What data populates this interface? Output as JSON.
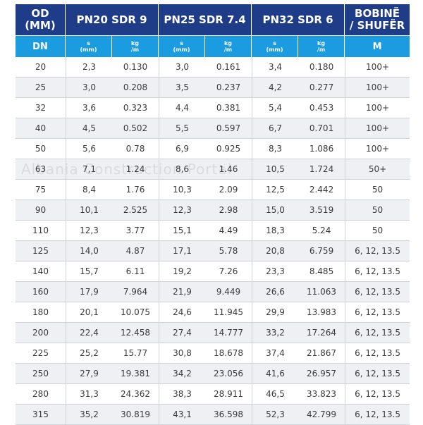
{
  "header": {
    "col1": [
      "OD",
      "(MM)"
    ],
    "group1": "PN20 SDR 9",
    "group2": "PN25 SDR 7.4",
    "group3": "PN32 SDR 6",
    "last": [
      "BOBINË",
      "/ SHUFËR"
    ]
  },
  "subheader": {
    "dn": "DN",
    "s_top": "s",
    "s_unit": "(mm)",
    "kg_top": "kg",
    "kg_unit": "/m",
    "m": "M"
  },
  "watermark": "Albania Construction Portal",
  "rows": [
    {
      "dn": "20",
      "s20": "2,3",
      "kg20": "0.130",
      "s25": "3,0",
      "kg25": "0.161",
      "s32": "3,4",
      "kg32": "0.180",
      "m": "100+"
    },
    {
      "dn": "25",
      "s20": "3,0",
      "kg20": "0.208",
      "s25": "3,5",
      "kg25": "0.237",
      "s32": "4,2",
      "kg32": "0.277",
      "m": "100+"
    },
    {
      "dn": "32",
      "s20": "3,6",
      "kg20": "0.323",
      "s25": "4,4",
      "kg25": "0.381",
      "s32": "5,4",
      "kg32": "0.453",
      "m": "100+"
    },
    {
      "dn": "40",
      "s20": "4,5",
      "kg20": "0.502",
      "s25": "5,5",
      "kg25": "0.597",
      "s32": "6,7",
      "kg32": "0.701",
      "m": "100+"
    },
    {
      "dn": "50",
      "s20": "5,6",
      "kg20": "0.78",
      "s25": "6,9",
      "kg25": "0.925",
      "s32": "8,3",
      "kg32": "1.086",
      "m": "100+"
    },
    {
      "dn": "63",
      "s20": "7,1",
      "kg20": "1.24",
      "s25": "8,6",
      "kg25": "1.46",
      "s32": "10,5",
      "kg32": "1.724",
      "m": "50+"
    },
    {
      "dn": "75",
      "s20": "8,4",
      "kg20": "1.76",
      "s25": "10,3",
      "kg25": "2.09",
      "s32": "12,5",
      "kg32": "2.442",
      "m": "50"
    },
    {
      "dn": "90",
      "s20": "10,1",
      "kg20": "2.525",
      "s25": "12,3",
      "kg25": "2.98",
      "s32": "15,0",
      "kg32": "3.519",
      "m": "50"
    },
    {
      "dn": "110",
      "s20": "12,3",
      "kg20": "3.77",
      "s25": "15,1",
      "kg25": "4.49",
      "s32": "18,3",
      "kg32": "5.24",
      "m": "50"
    },
    {
      "dn": "125",
      "s20": "14,0",
      "kg20": "4.87",
      "s25": "17,1",
      "kg25": "5.78",
      "s32": "20,8",
      "kg32": "6.759",
      "m": "6, 12, 13.5"
    },
    {
      "dn": "140",
      "s20": "15,7",
      "kg20": "6.11",
      "s25": "19,2",
      "kg25": "7.26",
      "s32": "23,3",
      "kg32": "8.485",
      "m": "6, 12, 13.5"
    },
    {
      "dn": "160",
      "s20": "17,9",
      "kg20": "7.964",
      "s25": "21,9",
      "kg25": "9.449",
      "s32": "26,6",
      "kg32": "11.063",
      "m": "6, 12, 13.5"
    },
    {
      "dn": "180",
      "s20": "20,1",
      "kg20": "10.075",
      "s25": "24,6",
      "kg25": "11.945",
      "s32": "29,9",
      "kg32": "13.983",
      "m": "6, 12, 13.5"
    },
    {
      "dn": "200",
      "s20": "22,4",
      "kg20": "12.458",
      "s25": "27,4",
      "kg25": "14.777",
      "s32": "33,2",
      "kg32": "17.264",
      "m": "6, 12, 13.5"
    },
    {
      "dn": "225",
      "s20": "25,2",
      "kg20": "15.77",
      "s25": "30,8",
      "kg25": "18.678",
      "s32": "37,4",
      "kg32": "21.867",
      "m": "6, 12, 13.5"
    },
    {
      "dn": "250",
      "s20": "27,9",
      "kg20": "19.381",
      "s25": "34,2",
      "kg25": "23.056",
      "s32": "41,6",
      "kg32": "26.957",
      "m": "6, 12, 13.5"
    },
    {
      "dn": "280",
      "s20": "31,3",
      "kg20": "24.362",
      "s25": "38,3",
      "kg25": "28.911",
      "s32": "46,5",
      "kg32": "33.823",
      "m": "6, 12, 13.5"
    },
    {
      "dn": "315",
      "s20": "35,2",
      "kg20": "30.819",
      "s25": "43,1",
      "kg25": "36.598",
      "s32": "52,3",
      "kg32": "42.799",
      "m": "6, 12, 13.5"
    }
  ],
  "colors": {
    "header_dark": "#1f3c88",
    "header_light": "#1b9be0",
    "row_alt": "#eef0f3"
  }
}
